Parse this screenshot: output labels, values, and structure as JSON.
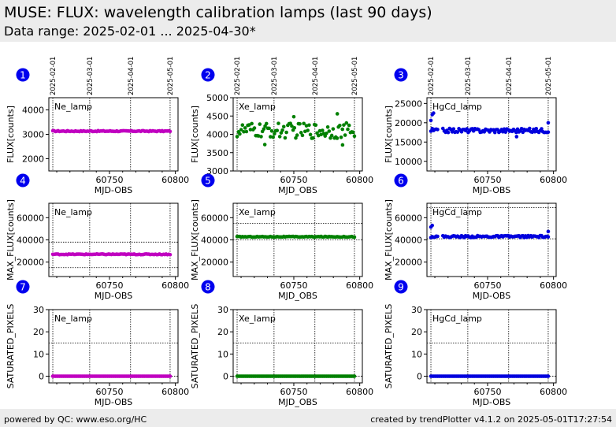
{
  "header": {
    "title": "MUSE: FLUX: wavelength calibration lamps (last 90 days)",
    "subtitle": "Data range: 2025-02-01 ... 2025-04-30*"
  },
  "footer": {
    "left": "powered by QC: www.eso.org/HC",
    "right": "created by trendPlotter v4.1.2 on 2025-05-01T17:27:54"
  },
  "date_ticks": [
    {
      "label": "2025-02-01",
      "mjd": 60707
    },
    {
      "label": "2025-03-01",
      "mjd": 60735
    },
    {
      "label": "2025-04-01",
      "mjd": 60766
    },
    {
      "label": "2025-05-01",
      "mjd": 60796
    }
  ],
  "colors": {
    "Ne_lamp": "#c000c0",
    "Xe_lamp": "#008000",
    "HgCd_lamp": "#0000dd",
    "badge": "#0000ee"
  },
  "chart_data": [
    {
      "panel": "1",
      "type": "scatter",
      "lamp": "Ne_lamp",
      "xlabel": "MJD-OBS",
      "ylabel": "FLUX[counts]",
      "xlim": [
        60704,
        60802
      ],
      "ylim": [
        1500,
        4500
      ],
      "xticks": [
        60750,
        60800
      ],
      "yticks": [
        2000,
        3000,
        4000
      ],
      "hlines": [],
      "x_start": 60707,
      "x_end": 60796,
      "n": 89,
      "level": 3130,
      "noise": 20,
      "outliers": []
    },
    {
      "panel": "2",
      "type": "scatter",
      "lamp": "Xe_lamp",
      "xlabel": "MJD_OBS",
      "ylabel": "FLUX[counts]",
      "xlim": [
        60704,
        60802
      ],
      "ylim": [
        3000,
        5000
      ],
      "xticks": [
        60750,
        60800
      ],
      "yticks": [
        3000,
        3500,
        4000,
        4500,
        5000
      ],
      "hlines": [],
      "x_start": 60707,
      "x_end": 60796,
      "n": 89,
      "level": 4100,
      "noise": 210,
      "outliers": [
        [
          60750,
          4480
        ],
        [
          60783,
          4560
        ],
        [
          60787,
          3710
        ],
        [
          60728,
          3720
        ]
      ]
    },
    {
      "panel": "3",
      "type": "scatter",
      "lamp": "HgCd_lamp",
      "xlabel": "MJD-OBS",
      "ylabel": "FLUX[counts]",
      "xlim": [
        60704,
        60802
      ],
      "ylim": [
        7500,
        26500
      ],
      "xticks": [
        60750,
        60800
      ],
      "yticks": [
        10000,
        15000,
        20000,
        25000
      ],
      "hlines": [],
      "x_start": 60707,
      "x_end": 60796,
      "n": 89,
      "level": 18000,
      "noise": 550,
      "outliers": [
        [
          60707,
          20600
        ],
        [
          60708,
          22100
        ],
        [
          60709,
          22500
        ],
        [
          60772,
          16400
        ],
        [
          60796,
          20000
        ]
      ]
    },
    {
      "panel": "4",
      "type": "scatter",
      "lamp": "Ne_lamp",
      "xlabel": "MJD-OBS",
      "ylabel": "MAX_FLUX[counts]",
      "xlim": [
        60704,
        60802
      ],
      "ylim": [
        7000,
        73000
      ],
      "xticks": [
        60750,
        60800
      ],
      "yticks": [
        20000,
        40000,
        60000
      ],
      "hlines": [
        38000,
        15000
      ],
      "x_start": 60707,
      "x_end": 60796,
      "n": 89,
      "level": 27000,
      "noise": 350,
      "outliers": []
    },
    {
      "panel": "5",
      "type": "scatter",
      "lamp": "Xe_lamp",
      "xlabel": "MJD_OBS",
      "ylabel": "MAX_FLUX[counts]",
      "xlim": [
        60704,
        60802
      ],
      "ylim": [
        7000,
        73000
      ],
      "xticks": [
        60750,
        60800
      ],
      "yticks": [
        20000,
        40000,
        60000
      ],
      "hlines": [
        55000,
        40000
      ],
      "x_start": 60707,
      "x_end": 60796,
      "n": 89,
      "level": 42800,
      "noise": 350,
      "outliers": []
    },
    {
      "panel": "6",
      "type": "scatter",
      "lamp": "HgCd_lamp",
      "xlabel": "MJD-OBS",
      "ylabel": "MAX_FLUX[counts]",
      "xlim": [
        60704,
        60802
      ],
      "ylim": [
        7000,
        73000
      ],
      "xticks": [
        60750,
        60800
      ],
      "yticks": [
        20000,
        40000,
        60000
      ],
      "hlines": [
        69000,
        41000
      ],
      "x_start": 60707,
      "x_end": 60796,
      "n": 89,
      "level": 43000,
      "noise": 900,
      "outliers": [
        [
          60707,
          51500
        ],
        [
          60708,
          53000
        ],
        [
          60796,
          47500
        ]
      ]
    },
    {
      "panel": "7",
      "type": "scatter",
      "lamp": "Ne_lamp",
      "xlabel": "MJD-OBS",
      "ylabel": "SATURATED_PIXELS",
      "xlim": [
        60704,
        60802
      ],
      "ylim": [
        -3,
        30
      ],
      "xticks": [
        60750,
        60800
      ],
      "yticks": [
        0,
        10,
        20,
        30
      ],
      "hlines": [
        15,
        0
      ],
      "x_start": 60707,
      "x_end": 60796,
      "n": 89,
      "level": 0,
      "noise": 0,
      "outliers": []
    },
    {
      "panel": "8",
      "type": "scatter",
      "lamp": "Xe_lamp",
      "xlabel": "MJD_OBS",
      "ylabel": "SATURATED_PIXELS",
      "xlim": [
        60704,
        60802
      ],
      "ylim": [
        -3,
        30
      ],
      "xticks": [
        60750,
        60800
      ],
      "yticks": [
        0,
        10,
        20,
        30
      ],
      "hlines": [
        15,
        0
      ],
      "x_start": 60707,
      "x_end": 60796,
      "n": 89,
      "level": 0,
      "noise": 0,
      "outliers": []
    },
    {
      "panel": "9",
      "type": "scatter",
      "lamp": "HgCd_lamp",
      "xlabel": "MJD-OBS",
      "ylabel": "SATURATED_PIXELS",
      "xlim": [
        60704,
        60802
      ],
      "ylim": [
        -3,
        30
      ],
      "xticks": [
        60750,
        60800
      ],
      "yticks": [
        0,
        10,
        20,
        30
      ],
      "hlines": [
        15,
        0
      ],
      "x_start": 60707,
      "x_end": 60796,
      "n": 89,
      "level": 0,
      "noise": 0,
      "outliers": []
    }
  ]
}
